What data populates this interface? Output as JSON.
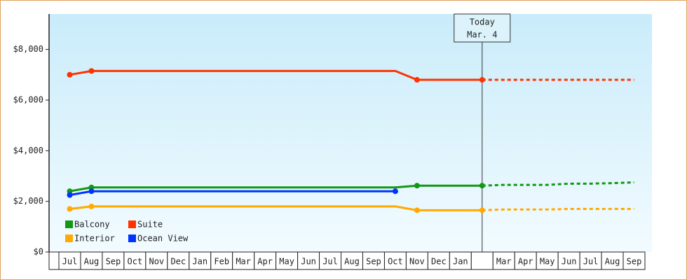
{
  "chart_data": {
    "type": "line",
    "categories": [
      "Jul",
      "Aug",
      "Sep",
      "Oct",
      "Nov",
      "Dec",
      "Jan",
      "Feb",
      "Mar",
      "Apr",
      "May",
      "Jun",
      "Jul",
      "Aug",
      "Sep",
      "Oct",
      "Nov",
      "Dec",
      "Jan",
      null,
      "Mar",
      "Apr",
      "May",
      "Jun",
      "Jul",
      "Aug",
      "Sep"
    ],
    "ylim": [
      0,
      9400
    ],
    "yticks": [
      {
        "value": 0,
        "label": "$0"
      },
      {
        "value": 2000,
        "label": "$2,000"
      },
      {
        "value": 4000,
        "label": "$4,000"
      },
      {
        "value": 6000,
        "label": "$6,000"
      },
      {
        "value": 8000,
        "label": "$8,000"
      }
    ],
    "annotation": [
      "Today",
      "Mar. 4"
    ],
    "series": [
      {
        "name": "Balcony",
        "color": "#119911",
        "values": [
          2400,
          2550,
          2550,
          2550,
          2550,
          2550,
          2550,
          2550,
          2550,
          2550,
          2550,
          2550,
          2550,
          2550,
          2550,
          2550,
          2620,
          2620,
          2620,
          2620,
          null,
          null,
          null,
          null,
          null,
          null,
          null
        ],
        "projected": [
          null,
          null,
          null,
          null,
          null,
          null,
          null,
          null,
          null,
          null,
          null,
          null,
          null,
          null,
          null,
          null,
          null,
          null,
          null,
          2620,
          2650,
          2650,
          2650,
          2700,
          2700,
          2720,
          2750
        ]
      },
      {
        "name": "Suite",
        "color": "#ff3300",
        "values": [
          7000,
          7150,
          7150,
          7150,
          7150,
          7150,
          7150,
          7150,
          7150,
          7150,
          7150,
          7150,
          7150,
          7150,
          7150,
          7150,
          6800,
          6800,
          6800,
          6800,
          null,
          null,
          null,
          null,
          null,
          null,
          null
        ],
        "projected": [
          null,
          null,
          null,
          null,
          null,
          null,
          null,
          null,
          null,
          null,
          null,
          null,
          null,
          null,
          null,
          null,
          null,
          null,
          null,
          6800,
          6800,
          6800,
          6800,
          6800,
          6800,
          6800,
          6800
        ]
      },
      {
        "name": "Interior",
        "color": "#ffaa00",
        "values": [
          1700,
          1800,
          1800,
          1800,
          1800,
          1800,
          1800,
          1800,
          1800,
          1800,
          1800,
          1800,
          1800,
          1800,
          1800,
          1800,
          1650,
          1650,
          1650,
          1650,
          null,
          null,
          null,
          null,
          null,
          null,
          null
        ],
        "projected": [
          null,
          null,
          null,
          null,
          null,
          null,
          null,
          null,
          null,
          null,
          null,
          null,
          null,
          null,
          null,
          null,
          null,
          null,
          null,
          1650,
          1680,
          1680,
          1680,
          1700,
          1700,
          1700,
          1700
        ]
      },
      {
        "name": "Ocean View",
        "color": "#0033ff",
        "values": [
          2250,
          2400,
          2400,
          2400,
          2400,
          2400,
          2400,
          2400,
          2400,
          2400,
          2400,
          2400,
          2400,
          2400,
          2400,
          2400,
          null,
          null,
          null,
          null,
          null,
          null,
          null,
          null,
          null,
          null,
          null
        ]
      }
    ]
  }
}
